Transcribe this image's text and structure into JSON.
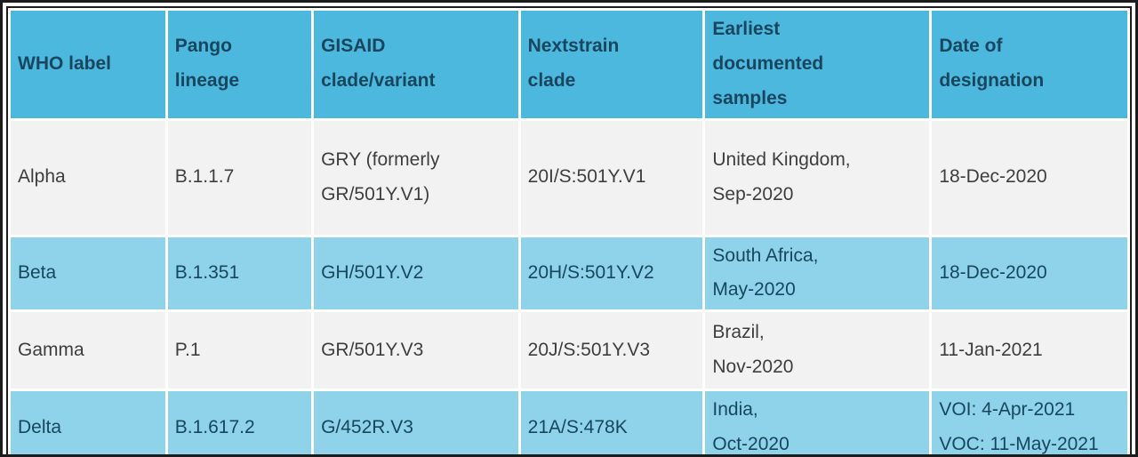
{
  "chart_data": {
    "type": "table",
    "columns": [
      "WHO label",
      "Pango lineage",
      "GISAID clade/variant",
      "Nextstrain clade",
      "Earliest documented samples",
      "Date of designation"
    ],
    "columns_display": [
      "WHO label",
      "Pango\nlineage",
      "GISAID\nclade/variant",
      "Nextstrain\nclade",
      "Earliest\ndocumented\nsamples",
      "Date of\ndesignation"
    ],
    "rows": [
      {
        "who_label": "Alpha",
        "pango_lineage": "B.1.1.7",
        "gisaid_clade_variant": "GRY (formerly GR/501Y.V1)",
        "nextstrain_clade": "20I/S:501Y.V1",
        "earliest_documented_samples": "United Kingdom, Sep-2020",
        "date_of_designation": "18-Dec-2020"
      },
      {
        "who_label": "Beta",
        "pango_lineage": "B.1.351",
        "gisaid_clade_variant": "GH/501Y.V2",
        "nextstrain_clade": "20H/S:501Y.V2",
        "earliest_documented_samples": "South Africa, May-2020",
        "date_of_designation": "18-Dec-2020"
      },
      {
        "who_label": "Gamma",
        "pango_lineage": "P.1",
        "gisaid_clade_variant": "GR/501Y.V3",
        "nextstrain_clade": "20J/S:501Y.V3",
        "earliest_documented_samples": "Brazil, Nov-2020",
        "date_of_designation": "11-Jan-2021"
      },
      {
        "who_label": "Delta",
        "pango_lineage": "B.1.617.2",
        "gisaid_clade_variant": "G/452R.V3",
        "nextstrain_clade": "21A/S:478K",
        "earliest_documented_samples": "India, Oct-2020",
        "date_of_designation": "VOI: 4-Apr-2021 VOC: 11-May-2021"
      }
    ],
    "cells_display": [
      [
        "Alpha",
        "B.1.1.7",
        "GRY (formerly\nGR/501Y.V1)",
        "20I/S:501Y.V1",
        "United Kingdom,\nSep-2020",
        "18-Dec-2020"
      ],
      [
        "Beta",
        "B.1.351",
        "GH/501Y.V2",
        "20H/S:501Y.V2",
        "South Africa,\nMay-2020",
        "18-Dec-2020"
      ],
      [
        "Gamma",
        "P.1",
        "GR/501Y.V3",
        "20J/S:501Y.V3",
        "Brazil,\nNov-2020",
        "11-Jan-2021"
      ],
      [
        "Delta",
        "B.1.617.2",
        "G/452R.V3",
        "21A/S:478K",
        "India,\nOct-2020",
        "VOI: 4-Apr-2021\nVOC: 11-May-2021"
      ]
    ],
    "layout": {
      "row_shading": [
        "plain",
        "alt",
        "plain",
        "alt"
      ]
    },
    "colors": {
      "header_background": "#4cb8dd",
      "header_text": "#19465f",
      "alt_row_background": "#8ed3e9",
      "alt_row_text": "#17475e",
      "plain_row_background": "#f2f2f2",
      "plain_row_text": "#3e3e3e",
      "table_border": "#1e1e1e",
      "cell_gap": "#ffffff"
    }
  }
}
